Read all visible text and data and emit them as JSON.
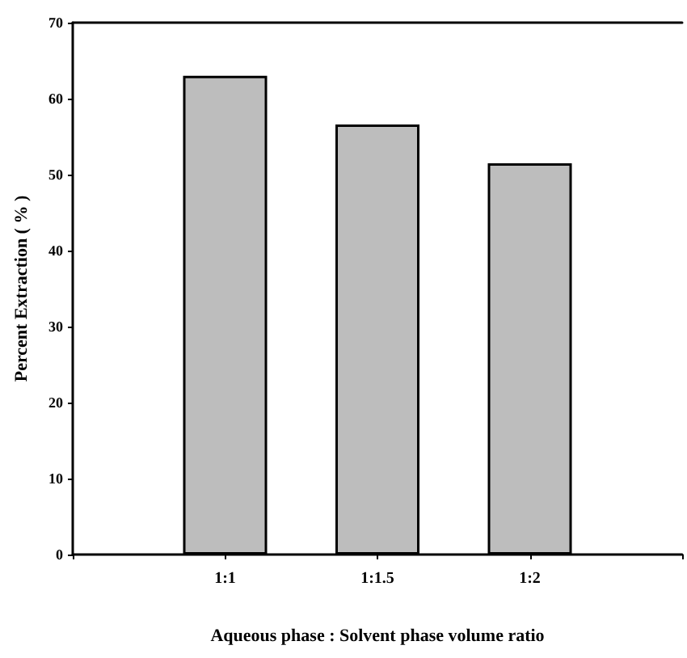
{
  "chart_data": {
    "type": "bar",
    "xlabel": "Aqueous phase : Solvent phase volume ratio",
    "ylabel": "Percent Extraction ( % )",
    "categories": [
      "1:1",
      "1:1.5",
      "1:2"
    ],
    "values": [
      63,
      56.6,
      51.5
    ],
    "color": "#bdbdbd",
    "ylim": [
      0,
      70
    ],
    "yticks": [
      0,
      10,
      20,
      30,
      40,
      50,
      60,
      70
    ],
    "grid": false
  }
}
